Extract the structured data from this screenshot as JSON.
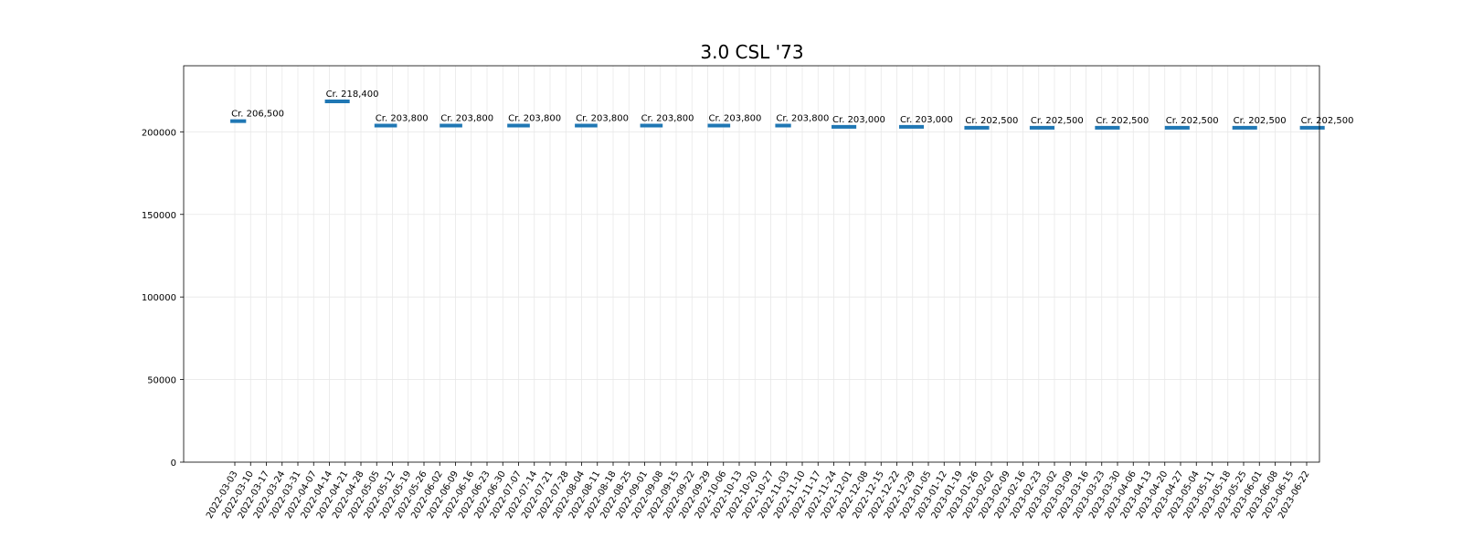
{
  "chart_data": {
    "type": "line",
    "title": "3.0 CSL '73",
    "xlabel": "",
    "ylabel": "",
    "ylim": [
      0,
      240000
    ],
    "y_ticks": [
      0,
      50000,
      100000,
      150000,
      200000
    ],
    "x_ticks": [
      "2022-03-03",
      "2022-03-10",
      "2022-03-17",
      "2022-03-24",
      "2022-03-31",
      "2022-04-07",
      "2022-04-14",
      "2022-04-21",
      "2022-04-28",
      "2022-05-05",
      "2022-05-12",
      "2022-05-19",
      "2022-05-26",
      "2022-06-02",
      "2022-06-09",
      "2022-06-16",
      "2022-06-23",
      "2022-06-30",
      "2022-07-07",
      "2022-07-14",
      "2022-07-21",
      "2022-07-28",
      "2022-08-04",
      "2022-08-11",
      "2022-08-18",
      "2022-08-25",
      "2022-09-01",
      "2022-09-08",
      "2022-09-15",
      "2022-09-22",
      "2022-09-29",
      "2022-10-06",
      "2022-10-13",
      "2022-10-20",
      "2022-10-27",
      "2022-11-03",
      "2022-11-10",
      "2022-11-17",
      "2022-11-24",
      "2022-12-01",
      "2022-12-08",
      "2022-12-15",
      "2022-12-22",
      "2022-12-29",
      "2023-01-05",
      "2023-01-12",
      "2023-01-19",
      "2023-01-26",
      "2023-02-02",
      "2023-02-09",
      "2023-02-16",
      "2023-02-23",
      "2023-03-02",
      "2023-03-09",
      "2023-03-16",
      "2023-03-23",
      "2023-03-30",
      "2023-04-06",
      "2023-04-13",
      "2023-04-20",
      "2023-04-27",
      "2023-05-04",
      "2023-05-11",
      "2023-05-18",
      "2023-05-25",
      "2023-06-01",
      "2023-06-08",
      "2023-06-15",
      "2023-06-22"
    ],
    "grid": true,
    "color": "#1f77b4",
    "segments": [
      {
        "start": "2022-03-01",
        "end": "2022-03-08",
        "value": 206500,
        "label": "Cr. 206,500"
      },
      {
        "start": "2022-04-12",
        "end": "2022-04-23",
        "value": 218400,
        "label": "Cr. 218,400"
      },
      {
        "start": "2022-05-04",
        "end": "2022-05-14",
        "value": 203800,
        "label": "Cr. 203,800"
      },
      {
        "start": "2022-06-02",
        "end": "2022-06-12",
        "value": 203800,
        "label": "Cr. 203,800"
      },
      {
        "start": "2022-07-02",
        "end": "2022-07-12",
        "value": 203800,
        "label": "Cr. 203,800"
      },
      {
        "start": "2022-08-01",
        "end": "2022-08-11",
        "value": 203800,
        "label": "Cr. 203,800"
      },
      {
        "start": "2022-08-30",
        "end": "2022-09-09",
        "value": 203800,
        "label": "Cr. 203,800"
      },
      {
        "start": "2022-09-29",
        "end": "2022-10-09",
        "value": 203800,
        "label": "Cr. 203,800"
      },
      {
        "start": "2022-10-29",
        "end": "2022-11-05",
        "value": 203800,
        "label": "Cr. 203,800"
      },
      {
        "start": "2022-11-23",
        "end": "2022-12-04",
        "value": 203000,
        "label": "Cr. 203,000"
      },
      {
        "start": "2022-12-23",
        "end": "2023-01-03",
        "value": 203000,
        "label": "Cr. 203,000"
      },
      {
        "start": "2023-01-21",
        "end": "2023-02-01",
        "value": 202500,
        "label": "Cr. 202,500"
      },
      {
        "start": "2023-02-19",
        "end": "2023-03-02",
        "value": 202500,
        "label": "Cr. 202,500"
      },
      {
        "start": "2023-03-20",
        "end": "2023-03-31",
        "value": 202500,
        "label": "Cr. 202,500"
      },
      {
        "start": "2023-04-20",
        "end": "2023-05-01",
        "value": 202500,
        "label": "Cr. 202,500"
      },
      {
        "start": "2023-05-20",
        "end": "2023-05-31",
        "value": 202500,
        "label": "Cr. 202,500"
      },
      {
        "start": "2023-06-19",
        "end": "2023-06-30",
        "value": 202500,
        "label": "Cr. 202,500"
      }
    ]
  }
}
